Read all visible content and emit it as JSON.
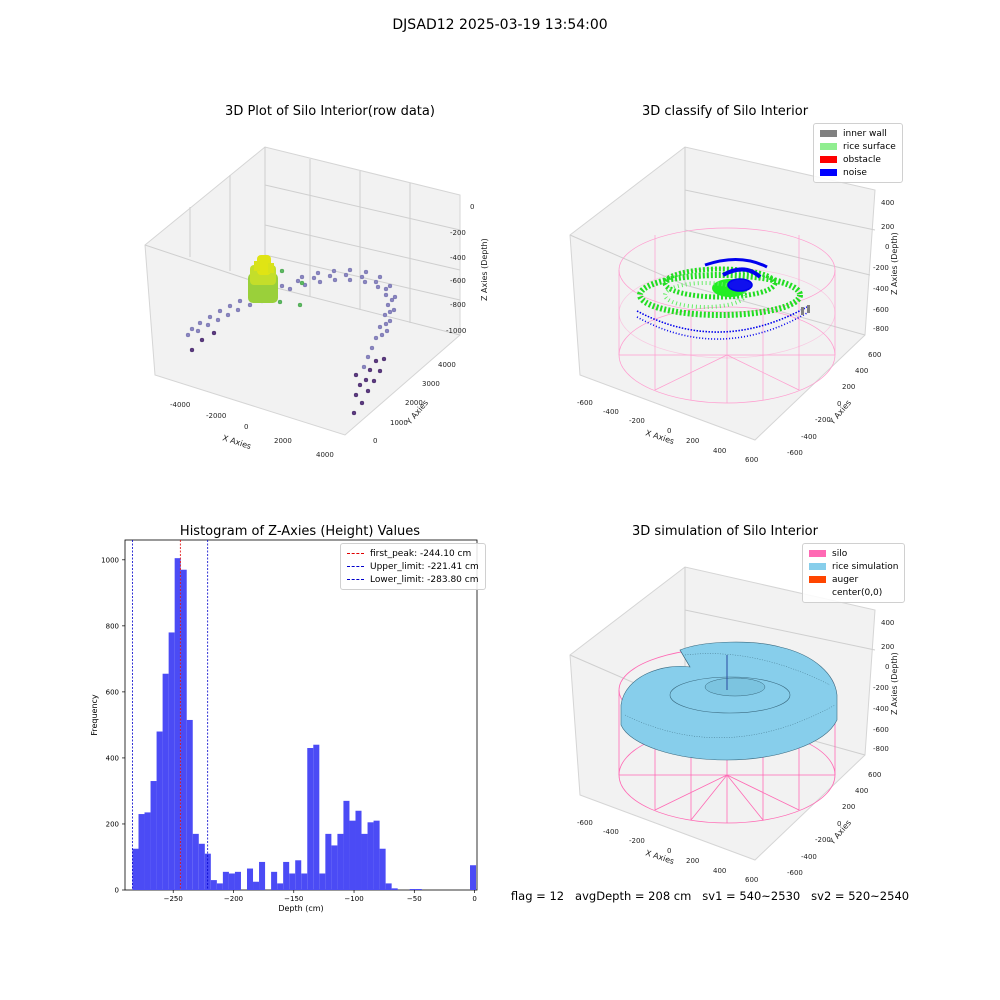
{
  "figure": {
    "suptitle": "DJSAD12 2025-03-19 13:54:00",
    "footer": "flag = 12   avgDepth = 208 cm   sv1 = 540~2530   sv2 = 520~2540"
  },
  "colors": {
    "hist_bar": "#4b4bf5",
    "peak_line": "#e00000",
    "limit_line": "#0000cc",
    "inner_wall": "#808080",
    "rice_surface": "#90ee90",
    "obstacle": "#ff0000",
    "noise": "#0000ff",
    "silo": "#ff69b4",
    "rice_simulation": "#87ceeb",
    "auger": "#ff4500"
  },
  "panels": [
    {
      "title": "3D Plot of Silo Interior(row data)",
      "x_label": "X Axies",
      "y_label": "Y Axies",
      "z_label": "Z Axies (Depth)",
      "x_ticks": [
        "-4000",
        "-2000",
        "0",
        "2000",
        "4000"
      ],
      "y_ticks": [
        "0",
        "1000",
        "2000",
        "3000",
        "4000"
      ],
      "z_ticks": [
        "0",
        "-200",
        "-400",
        "-600",
        "-800",
        "-1000"
      ]
    },
    {
      "title": "3D classify of Silo Interior",
      "x_label": "X Axies",
      "y_label": "Y Axies",
      "z_label": "Z Axies (Depth)",
      "x_ticks": [
        "-600",
        "-400",
        "-200",
        "0",
        "200",
        "400",
        "600"
      ],
      "y_ticks": [
        "-600",
        "-400",
        "-200",
        "0",
        "200",
        "400",
        "600"
      ],
      "z_ticks": [
        "400",
        "200",
        "0",
        "-200",
        "-400",
        "-600",
        "-800"
      ],
      "legend": [
        "inner wall",
        "rice surface",
        "obstacle",
        "noise"
      ]
    },
    {
      "title": "3D simulation of Silo Interior",
      "x_label": "X Axies",
      "y_label": "Y Axies",
      "z_label": "Z Axies (Depth)",
      "x_ticks": [
        "-600",
        "-400",
        "-200",
        "0",
        "200",
        "400",
        "600"
      ],
      "y_ticks": [
        "-600",
        "-400",
        "-200",
        "0",
        "200",
        "400",
        "600"
      ],
      "z_ticks": [
        "400",
        "200",
        "0",
        "-200",
        "-400",
        "-600",
        "-800"
      ],
      "legend": [
        "silo",
        "rice simulation",
        "auger",
        "center(0,0)"
      ]
    }
  ],
  "chart_data": {
    "type": "bar",
    "title": "Histogram of Z-Axies (Height) Values",
    "xlabel": "Depth (cm)",
    "ylabel": "Frequency",
    "xlim": [
      -290,
      2
    ],
    "ylim": [
      0,
      1060
    ],
    "x_ticks": [
      -250,
      -200,
      -150,
      -100,
      -50,
      0
    ],
    "y_ticks": [
      0,
      200,
      400,
      600,
      800,
      1000
    ],
    "bin_width": 5.0,
    "bins": [
      [
        -283.8,
        125
      ],
      [
        -278.8,
        230
      ],
      [
        -273.8,
        235
      ],
      [
        -268.8,
        330
      ],
      [
        -263.8,
        480
      ],
      [
        -258.8,
        655
      ],
      [
        -253.8,
        780
      ],
      [
        -248.8,
        1005
      ],
      [
        -243.8,
        970
      ],
      [
        -238.8,
        515
      ],
      [
        -233.8,
        170
      ],
      [
        -228.8,
        140
      ],
      [
        -223.8,
        110
      ],
      [
        -218.8,
        30
      ],
      [
        -213.8,
        20
      ],
      [
        -208.8,
        55
      ],
      [
        -203.8,
        50
      ],
      [
        -198.8,
        55
      ],
      [
        -188.8,
        65
      ],
      [
        -183.8,
        25
      ],
      [
        -178.8,
        85
      ],
      [
        -168.8,
        55
      ],
      [
        -163.8,
        20
      ],
      [
        -158.8,
        85
      ],
      [
        -153.8,
        50
      ],
      [
        -148.8,
        90
      ],
      [
        -143.8,
        50
      ],
      [
        -138.8,
        430
      ],
      [
        -133.8,
        440
      ],
      [
        -128.8,
        50
      ],
      [
        -123.8,
        170
      ],
      [
        -118.8,
        135
      ],
      [
        -113.8,
        170
      ],
      [
        -108.8,
        270
      ],
      [
        -103.8,
        210
      ],
      [
        -98.8,
        240
      ],
      [
        -93.8,
        170
      ],
      [
        -88.8,
        205
      ],
      [
        -83.8,
        210
      ],
      [
        -78.8,
        125
      ],
      [
        -73.8,
        20
      ],
      [
        -68.8,
        5
      ],
      [
        -53.8,
        3
      ],
      [
        -48.8,
        3
      ],
      [
        -3.8,
        75
      ]
    ],
    "lines": [
      {
        "name": "first_peak: -244.10 cm",
        "x": -244.1,
        "color": "#e00000"
      },
      {
        "name": "Upper_limit: -221.41 cm",
        "x": -221.41,
        "color": "#0000cc"
      },
      {
        "name": "Lower_limit: -283.80 cm",
        "x": -283.8,
        "color": "#0000cc"
      }
    ],
    "legend_position": "upper right",
    "grid": false
  }
}
